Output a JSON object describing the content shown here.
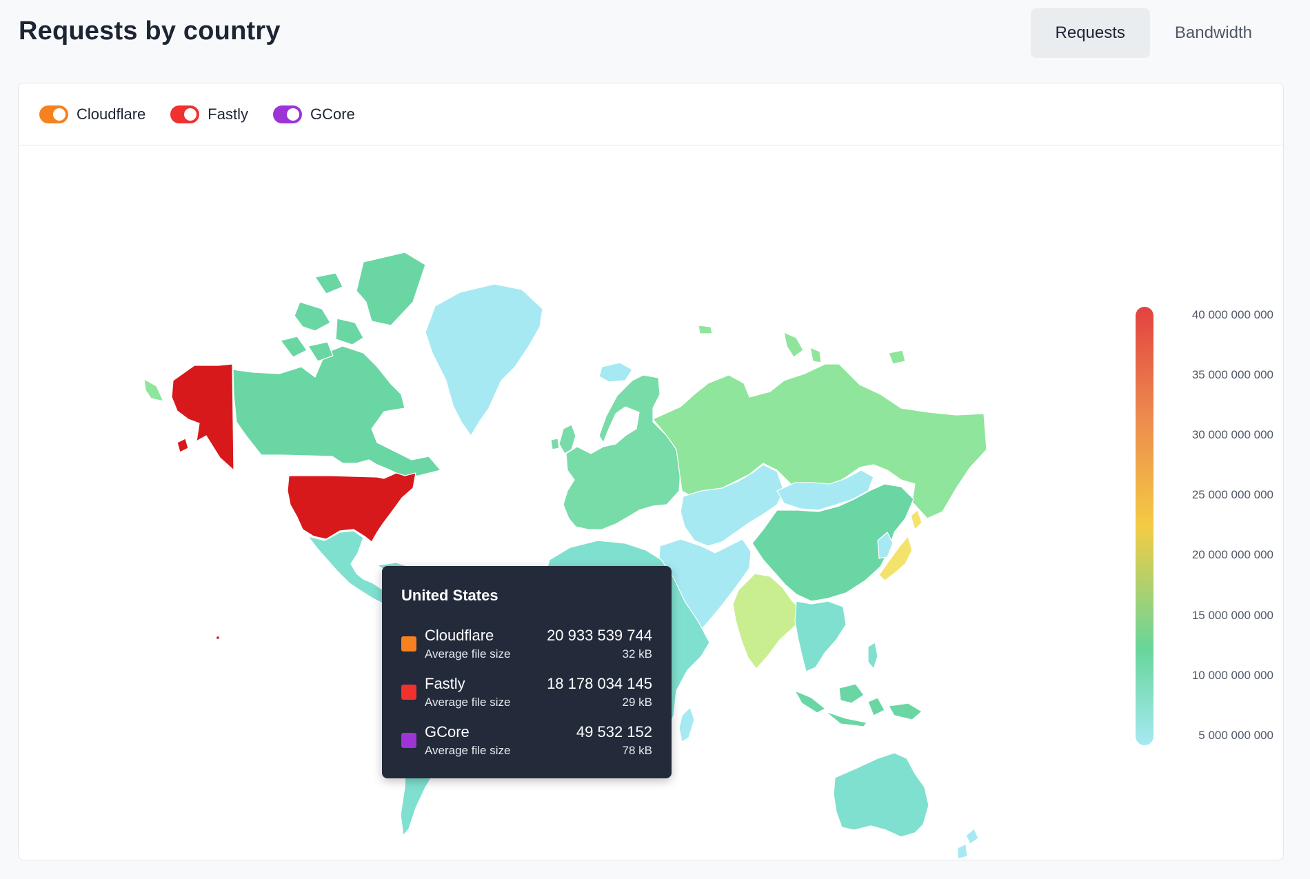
{
  "page_title": "Requests by country",
  "metric_tabs": [
    {
      "label": "Requests",
      "active": true
    },
    {
      "label": "Bandwidth",
      "active": false
    }
  ],
  "providers": [
    {
      "name": "Cloudflare",
      "color": "#f5821f",
      "enabled": true
    },
    {
      "name": "Fastly",
      "color": "#f0312e",
      "enabled": true
    },
    {
      "name": "GCore",
      "color": "#9d34d6",
      "enabled": true
    }
  ],
  "legend": {
    "ticks": [
      "40 000 000 000",
      "35 000 000 000",
      "30 000 000 000",
      "25 000 000 000",
      "20 000 000 000",
      "15 000 000 000",
      "10 000 000 000",
      "5 000 000 000"
    ],
    "colors": {
      "high": "#e3423f",
      "mid": "#f4cb43",
      "low": "#a6e9f3"
    }
  },
  "tooltip": {
    "country": "United States",
    "rows": [
      {
        "provider": "Cloudflare",
        "color": "#f5821f",
        "value": "20 933 539 744",
        "sub_label": "Average file size",
        "file_size": "32 kB"
      },
      {
        "provider": "Fastly",
        "color": "#f0312e",
        "value": "18 178 034 145",
        "sub_label": "Average file size",
        "file_size": "29 kB"
      },
      {
        "provider": "GCore",
        "color": "#9d34d6",
        "value": "49 532 152",
        "sub_label": "Average file size",
        "file_size": "78 kB"
      }
    ]
  },
  "map": {
    "highlighted_country": "United States",
    "region_colors": {
      "United States": "#d7191c",
      "Alaska": "#d7191c",
      "Canada": "#6ad6a4",
      "Greenland": "#a6e9f3",
      "Mexico": "#7fe0cf",
      "Central America": "#7fe0cf",
      "South America": "#7fe0cf",
      "Iceland": "#a6e9f3",
      "Europe": "#77dca7",
      "Russia": "#8ee59b",
      "Middle East": "#a6e9f3",
      "Central Asia": "#a6e9f3",
      "Mongolia": "#a6e9f3",
      "China": "#6ad6a4",
      "India": "#c9ee8f",
      "Southeast Asia": "#7fe0cf",
      "Japan": "#f3e36c",
      "Korea": "#a6e9f3",
      "Africa": "#7fe0cf",
      "Madagascar": "#a6e9f3",
      "Australia": "#7fe0cf",
      "New Zealand": "#a6e9f3",
      "Indonesia": "#6ad6a4"
    }
  }
}
